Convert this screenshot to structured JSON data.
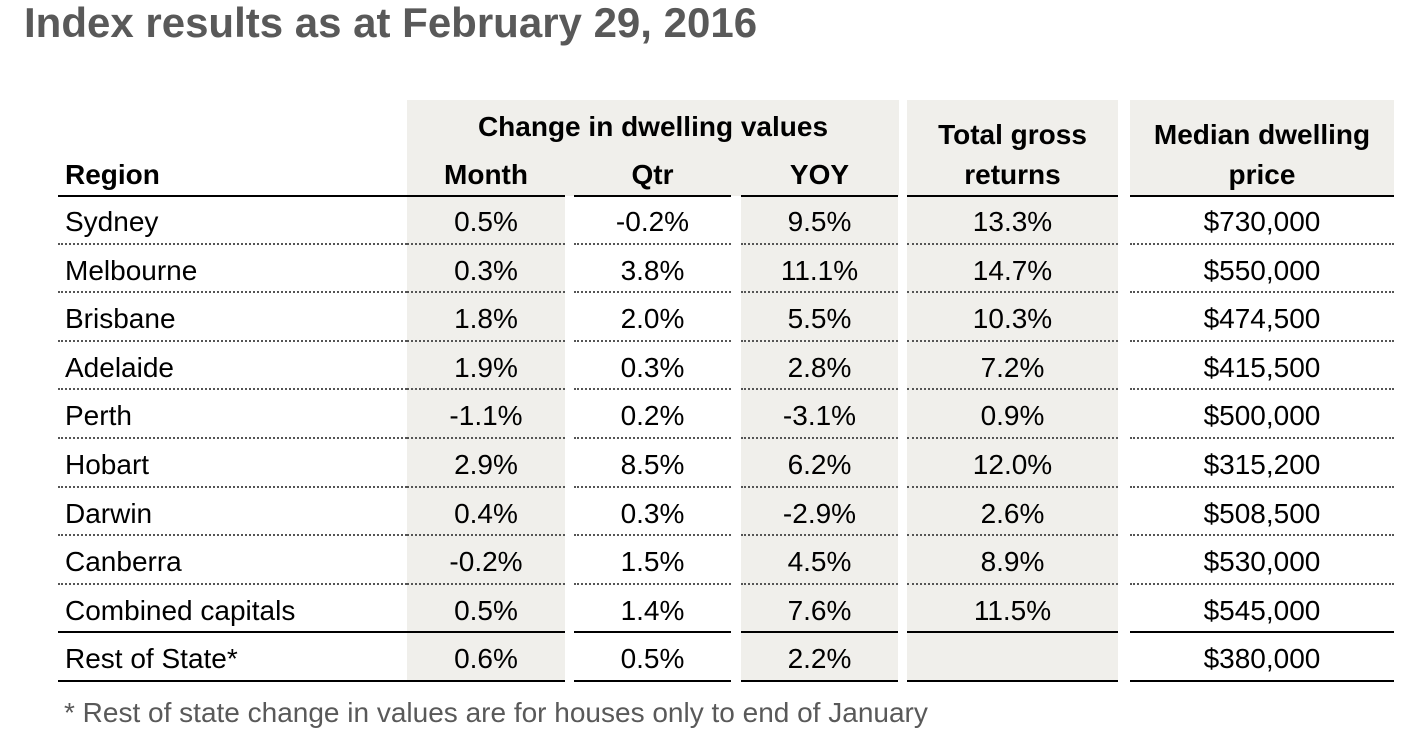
{
  "title": "Index results as at February 29, 2016",
  "table": {
    "group_header": "Change in dwelling values",
    "columns": {
      "region": "Region",
      "month": "Month",
      "qtr": "Qtr",
      "yoy": "YOY",
      "returns": [
        "Total gross",
        "returns"
      ],
      "median": [
        "Median dwelling",
        "price"
      ]
    },
    "rows": [
      {
        "region": "Sydney",
        "month": "0.5%",
        "qtr": "-0.2%",
        "yoy": "9.5%",
        "returns": "13.3%",
        "median": "$730,000"
      },
      {
        "region": "Melbourne",
        "month": "0.3%",
        "qtr": "3.8%",
        "yoy": "11.1%",
        "returns": "14.7%",
        "median": "$550,000"
      },
      {
        "region": "Brisbane",
        "month": "1.8%",
        "qtr": "2.0%",
        "yoy": "5.5%",
        "returns": "10.3%",
        "median": "$474,500"
      },
      {
        "region": "Adelaide",
        "month": "1.9%",
        "qtr": "0.3%",
        "yoy": "2.8%",
        "returns": "7.2%",
        "median": "$415,500"
      },
      {
        "region": "Perth",
        "month": "-1.1%",
        "qtr": "0.2%",
        "yoy": "-3.1%",
        "returns": "0.9%",
        "median": "$500,000"
      },
      {
        "region": "Hobart",
        "month": "2.9%",
        "qtr": "8.5%",
        "yoy": "6.2%",
        "returns": "12.0%",
        "median": "$315,200"
      },
      {
        "region": "Darwin",
        "month": "0.4%",
        "qtr": "0.3%",
        "yoy": "-2.9%",
        "returns": "2.6%",
        "median": "$508,500"
      },
      {
        "region": "Canberra",
        "month": "-0.2%",
        "qtr": "1.5%",
        "yoy": "4.5%",
        "returns": "8.9%",
        "median": "$530,000"
      },
      {
        "region": "Combined capitals",
        "month": "0.5%",
        "qtr": "1.4%",
        "yoy": "7.6%",
        "returns": "11.5%",
        "median": "$545,000"
      },
      {
        "region": "Rest of State*",
        "month": "0.6%",
        "qtr": "0.5%",
        "yoy": "2.2%",
        "returns": "",
        "median": "$380,000"
      }
    ]
  },
  "footnote": "* Rest of state change in values are for houses only to end of January",
  "colors": {
    "title": "#595959",
    "header_shading": "#f0efeb",
    "footnote": "#595959"
  }
}
